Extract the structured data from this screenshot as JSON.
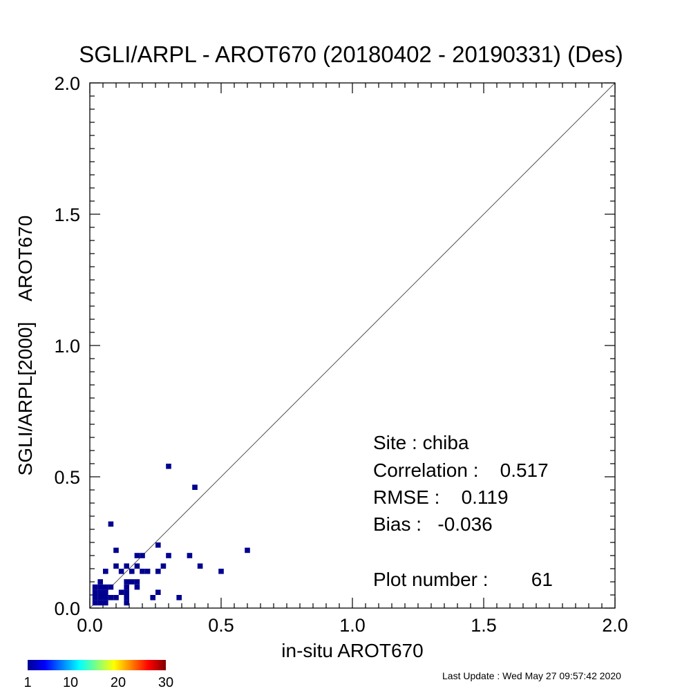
{
  "chart_data": {
    "type": "heatmap",
    "title": "SGLI/ARPL - AROT670 (20180402 - 20190331) (Des)",
    "xlabel": "in-situ AROT670",
    "ylabel": "SGLI/ARPL[2000]    AROT670",
    "xlim": [
      0,
      2
    ],
    "ylim": [
      0,
      2
    ],
    "x_ticks": [
      "0.0",
      "0.5",
      "1.0",
      "1.5",
      "2.0"
    ],
    "y_ticks": [
      "0.0",
      "0.5",
      "1.0",
      "1.5",
      "2.0"
    ],
    "reference_line": "1:1",
    "cell_size": 0.02,
    "points": [
      [
        0.02,
        0.02
      ],
      [
        0.04,
        0.02
      ],
      [
        0.06,
        0.02
      ],
      [
        0.14,
        0.02
      ],
      [
        0.02,
        0.04
      ],
      [
        0.04,
        0.04
      ],
      [
        0.06,
        0.04
      ],
      [
        0.08,
        0.04
      ],
      [
        0.1,
        0.04
      ],
      [
        0.14,
        0.04
      ],
      [
        0.24,
        0.04
      ],
      [
        0.34,
        0.04
      ],
      [
        0.02,
        0.06
      ],
      [
        0.04,
        0.06
      ],
      [
        0.06,
        0.06
      ],
      [
        0.12,
        0.06
      ],
      [
        0.14,
        0.06
      ],
      [
        0.26,
        0.06
      ],
      [
        0.02,
        0.08
      ],
      [
        0.04,
        0.08
      ],
      [
        0.06,
        0.08
      ],
      [
        0.08,
        0.08
      ],
      [
        0.14,
        0.08
      ],
      [
        0.18,
        0.08
      ],
      [
        0.04,
        0.1
      ],
      [
        0.14,
        0.1
      ],
      [
        0.16,
        0.1
      ],
      [
        0.18,
        0.1
      ],
      [
        0.06,
        0.14
      ],
      [
        0.12,
        0.14
      ],
      [
        0.16,
        0.14
      ],
      [
        0.2,
        0.14
      ],
      [
        0.22,
        0.14
      ],
      [
        0.26,
        0.14
      ],
      [
        0.5,
        0.14
      ],
      [
        0.1,
        0.16
      ],
      [
        0.14,
        0.16
      ],
      [
        0.18,
        0.16
      ],
      [
        0.28,
        0.16
      ],
      [
        0.42,
        0.16
      ],
      [
        0.18,
        0.2
      ],
      [
        0.2,
        0.2
      ],
      [
        0.3,
        0.2
      ],
      [
        0.38,
        0.2
      ],
      [
        0.1,
        0.22
      ],
      [
        0.6,
        0.22
      ],
      [
        0.26,
        0.24
      ],
      [
        0.08,
        0.32
      ],
      [
        0.4,
        0.46
      ],
      [
        0.3,
        0.54
      ]
    ],
    "point_color": "#00008f",
    "colorbar": {
      "ticks": [
        "1",
        "10",
        "20",
        "30"
      ],
      "min": 1,
      "max": 30,
      "colors": [
        "#00008f",
        "#0000ff",
        "#0080ff",
        "#00ffff",
        "#80ff80",
        "#ffff00",
        "#ff8000",
        "#ff0000",
        "#800000"
      ]
    }
  },
  "stats": {
    "site": "Site : chiba",
    "correlation": "Correlation :    0.517",
    "rmse": "RMSE :    0.119",
    "bias": "Bias :   -0.036",
    "plot_number": "Plot number :        61"
  },
  "last_update": "Last Update : Wed May 27 09:57:42 2020"
}
